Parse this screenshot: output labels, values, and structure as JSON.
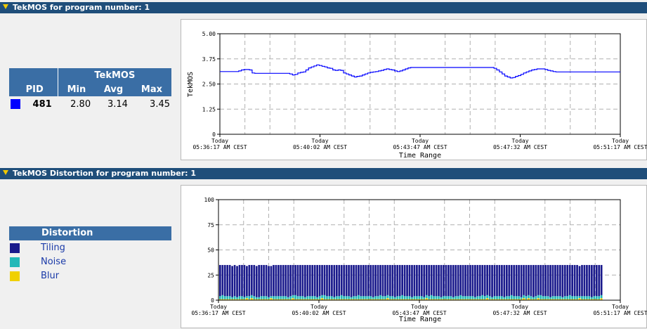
{
  "section1": {
    "title": "TekMOS for program number: 1"
  },
  "section2": {
    "title": "TekMOS Distortion for program number: 1"
  },
  "tekmos_table": {
    "group_header": "TekMOS",
    "col_pid": "PID",
    "col_min": "Min",
    "col_avg": "Avg",
    "col_max": "Max",
    "row": {
      "color": "#0000ff",
      "pid": "481",
      "min": "2.80",
      "avg": "3.14",
      "max": "3.45"
    }
  },
  "distortion_legend": {
    "header": "Distortion",
    "items": [
      {
        "label": "Tiling",
        "color": "#1a1a8c"
      },
      {
        "label": "Noise",
        "color": "#22b8b8"
      },
      {
        "label": "Blur",
        "color": "#f0d000"
      }
    ]
  },
  "chart_data": [
    {
      "type": "line",
      "ylabel": "TekMOS",
      "xlabel": "Time Range",
      "ylim": [
        0,
        5
      ],
      "yticks": [
        "5.00",
        "3.75",
        "2.50",
        "1.25",
        "0"
      ],
      "xticks": [
        {
          "day": "Today",
          "time": "05:36:17 AM CEST"
        },
        {
          "day": "Today",
          "time": "05:40:02 AM CEST"
        },
        {
          "day": "Today",
          "time": "05:43:47 AM CEST"
        },
        {
          "day": "Today",
          "time": "05:47:32 AM CEST"
        },
        {
          "day": "Today",
          "time": "05:51:17 AM CEST"
        }
      ],
      "grid": true,
      "series": [
        {
          "color": "#0000ff",
          "values": [
            3.12,
            3.12,
            3.12,
            3.12,
            3.12,
            3.12,
            3.12,
            3.15,
            3.2,
            3.22,
            3.22,
            3.2,
            3.05,
            3.03,
            3.03,
            3.03,
            3.03,
            3.03,
            3.03,
            3.03,
            3.03,
            3.03,
            3.03,
            3.03,
            3.03,
            3.03,
            3.0,
            2.95,
            2.98,
            3.05,
            3.08,
            3.1,
            3.2,
            3.3,
            3.35,
            3.4,
            3.45,
            3.42,
            3.38,
            3.35,
            3.3,
            3.28,
            3.2,
            3.18,
            3.2,
            3.18,
            3.05,
            3.0,
            2.95,
            2.9,
            2.85,
            2.88,
            2.9,
            2.95,
            3.0,
            3.05,
            3.08,
            3.1,
            3.12,
            3.15,
            3.18,
            3.22,
            3.25,
            3.22,
            3.2,
            3.15,
            3.12,
            3.15,
            3.2,
            3.25,
            3.3,
            3.32,
            3.32,
            3.32,
            3.32,
            3.32,
            3.32,
            3.32,
            3.32,
            3.32,
            3.32,
            3.32,
            3.32,
            3.32,
            3.32,
            3.32,
            3.32,
            3.32,
            3.32,
            3.32,
            3.32,
            3.32,
            3.32,
            3.32,
            3.32,
            3.32,
            3.32,
            3.32,
            3.32,
            3.32,
            3.32,
            3.32,
            3.28,
            3.2,
            3.1,
            3.0,
            2.9,
            2.85,
            2.8,
            2.82,
            2.88,
            2.92,
            2.98,
            3.05,
            3.1,
            3.15,
            3.2,
            3.22,
            3.25,
            3.25,
            3.25,
            3.22,
            3.18,
            3.15,
            3.12,
            3.1,
            3.1,
            3.1,
            3.1,
            3.1,
            3.1,
            3.1,
            3.1,
            3.1,
            3.1,
            3.1,
            3.1,
            3.1,
            3.1,
            3.1,
            3.1,
            3.1,
            3.1,
            3.1,
            3.1,
            3.1,
            3.1,
            3.1,
            3.1,
            3.1
          ]
        }
      ]
    },
    {
      "type": "bar",
      "stacked": true,
      "xlabel": "Time Range",
      "ylim": [
        0,
        100
      ],
      "yticks": [
        "100",
        "75",
        "50",
        "25",
        "0"
      ],
      "xticks": [
        {
          "day": "Today",
          "time": "05:36:17 AM CEST"
        },
        {
          "day": "Today",
          "time": "05:40:02 AM CEST"
        },
        {
          "day": "Today",
          "time": "05:43:47 AM CEST"
        },
        {
          "day": "Today",
          "time": "05:47:32 AM CEST"
        },
        {
          "day": "Today",
          "time": "05:51:17 AM CEST"
        }
      ],
      "grid": true,
      "series": [
        {
          "name": "Blur",
          "color": "#f0d000",
          "values": [
            1,
            1,
            1,
            1,
            1,
            1,
            1,
            1,
            1,
            1,
            1,
            2,
            1,
            2,
            1,
            1,
            1,
            1,
            1,
            1,
            1,
            2,
            1,
            1,
            1,
            1,
            1,
            1,
            1,
            1,
            2,
            1,
            1,
            1,
            1,
            1,
            1,
            1,
            1,
            1,
            1,
            1,
            2,
            1,
            1,
            1,
            1,
            1,
            1,
            1,
            1,
            1,
            1,
            1,
            1,
            1,
            1,
            1,
            1,
            1,
            1,
            1,
            1,
            1,
            1,
            1,
            1,
            1,
            1,
            2,
            1,
            1,
            1,
            1,
            1,
            1,
            1,
            1,
            1,
            1,
            1,
            1,
            1,
            1,
            1,
            2,
            1,
            1,
            1,
            1,
            1,
            1,
            1,
            1,
            1,
            1,
            1,
            1,
            1,
            1,
            1,
            1,
            1,
            1,
            1,
            1,
            1,
            1,
            1,
            1,
            2,
            1,
            1,
            1,
            1,
            1,
            1,
            1,
            1,
            1,
            1,
            1,
            1,
            1,
            1,
            2,
            1,
            2,
            1,
            1,
            1,
            2,
            1,
            1,
            1,
            1,
            1,
            1,
            1,
            1,
            1,
            1,
            1,
            1,
            1,
            1,
            1,
            1,
            2,
            1,
            1,
            1,
            1,
            1,
            1,
            1,
            1,
            2
          ]
        },
        {
          "name": "Noise",
          "color": "#22b8b8",
          "values": [
            3,
            4,
            3,
            3,
            3,
            2,
            3,
            2,
            3,
            3,
            2,
            2,
            3,
            3,
            3,
            2,
            2,
            3,
            3,
            3,
            2,
            2,
            3,
            3,
            3,
            3,
            3,
            3,
            2,
            3,
            3,
            4,
            3,
            3,
            3,
            2,
            3,
            3,
            3,
            3,
            2,
            3,
            3,
            4,
            3,
            3,
            3,
            2,
            3,
            3,
            4,
            3,
            3,
            3,
            2,
            3,
            3,
            4,
            3,
            3,
            3,
            3,
            3,
            2,
            3,
            3,
            4,
            3,
            3,
            3,
            3,
            3,
            2,
            3,
            3,
            4,
            3,
            3,
            3,
            2,
            3,
            3,
            3,
            3,
            2,
            3,
            3,
            4,
            3,
            3,
            3,
            2,
            3,
            3,
            3,
            3,
            2,
            3,
            3,
            4,
            3,
            3,
            3,
            3,
            3,
            2,
            3,
            3,
            4,
            3,
            3,
            3,
            2,
            3,
            3,
            3,
            3,
            2,
            3,
            3,
            4,
            3,
            3,
            3,
            2,
            3,
            3,
            3,
            3,
            2,
            3,
            3,
            4,
            3,
            3,
            3,
            2,
            3,
            3,
            3,
            3,
            2,
            3,
            3,
            4,
            3,
            3,
            3,
            2,
            3,
            3,
            3,
            3,
            2,
            3,
            3,
            3,
            3,
            2
          ]
        },
        {
          "name": "Tiling",
          "color": "#1a1a8c",
          "values": [
            31,
            30,
            31,
            31,
            31,
            31,
            31,
            31,
            31,
            31,
            32,
            30,
            31,
            30,
            31,
            31,
            32,
            31,
            31,
            31,
            31,
            30,
            31,
            31,
            31,
            31,
            31,
            31,
            32,
            31,
            30,
            30,
            31,
            31,
            31,
            32,
            31,
            31,
            31,
            31,
            32,
            31,
            30,
            30,
            31,
            31,
            31,
            32,
            31,
            31,
            30,
            31,
            31,
            31,
            32,
            31,
            31,
            30,
            31,
            31,
            31,
            31,
            31,
            32,
            31,
            31,
            30,
            31,
            31,
            30,
            31,
            31,
            32,
            31,
            31,
            30,
            31,
            31,
            31,
            32,
            31,
            31,
            31,
            31,
            32,
            30,
            31,
            30,
            31,
            31,
            31,
            32,
            31,
            31,
            31,
            31,
            32,
            31,
            31,
            30,
            31,
            31,
            31,
            31,
            31,
            32,
            31,
            31,
            30,
            31,
            30,
            31,
            32,
            31,
            31,
            31,
            31,
            32,
            31,
            31,
            30,
            31,
            31,
            31,
            32,
            30,
            31,
            30,
            31,
            32,
            31,
            30,
            30,
            31,
            31,
            31,
            32,
            31,
            31,
            31,
            31,
            32,
            31,
            31,
            30,
            31,
            31,
            31,
            30,
            31,
            31,
            31,
            31,
            32,
            31,
            31,
            31,
            30,
            31
          ]
        }
      ]
    }
  ]
}
